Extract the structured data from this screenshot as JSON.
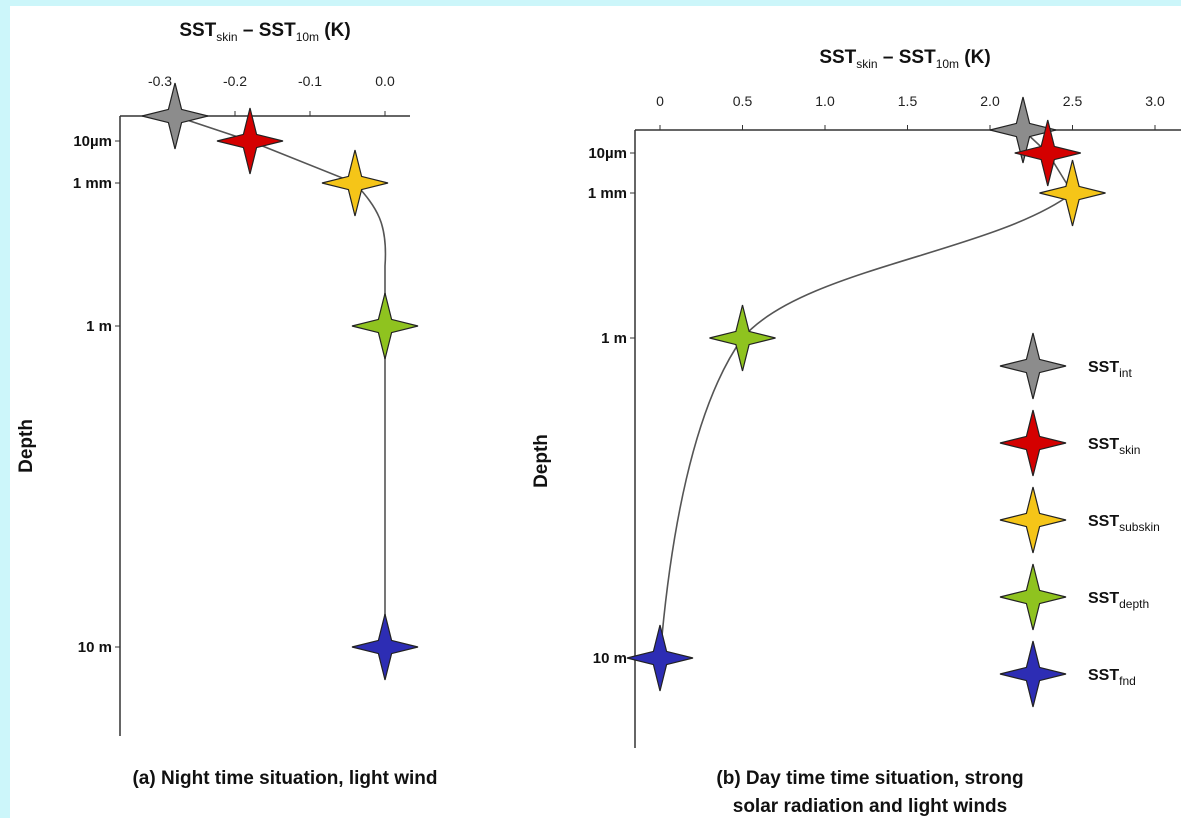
{
  "chart_data": [
    {
      "type": "line",
      "panel": "a",
      "caption": "(a) Night time situation, light wind",
      "xlabel": {
        "main": "SST",
        "sub1": "skin",
        "mid": " – SST",
        "sub2": "10m",
        "unit": " (K)"
      },
      "ylabel": "Depth",
      "xticks": [
        "-0.3",
        "-0.2",
        "-0.1",
        "0.0"
      ],
      "xlim": [
        -0.3,
        0.0
      ],
      "depth_ticks": [
        "10µm",
        "1 mm",
        "1 m",
        "10 m"
      ],
      "points": [
        {
          "name": "SST_int",
          "x": -0.28,
          "depth": "interface",
          "color": "#8c8c8c"
        },
        {
          "name": "SST_skin",
          "x": -0.18,
          "depth": "10µm",
          "color": "#d40000"
        },
        {
          "name": "SST_subskin",
          "x": -0.04,
          "depth": "1 mm",
          "color": "#f5c518"
        },
        {
          "name": "SST_depth",
          "x": 0.0,
          "depth": "1 m",
          "color": "#8fc31f"
        },
        {
          "name": "SST_fnd",
          "x": 0.0,
          "depth": "10 m",
          "color": "#2d2db4"
        }
      ]
    },
    {
      "type": "line",
      "panel": "b",
      "caption": [
        "(b) Day time time situation, strong",
        "solar radiation and light winds"
      ],
      "xlabel": {
        "main": "SST",
        "sub1": "skin",
        "mid": " – SST",
        "sub2": "10m",
        "unit": " (K)"
      },
      "ylabel": "Depth",
      "xticks": [
        "0",
        "0.5",
        "1.0",
        "1.5",
        "2.0",
        "2.5",
        "3.0"
      ],
      "xlim": [
        0,
        3.0
      ],
      "depth_ticks": [
        "10µm",
        "1 mm",
        "1 m",
        "10 m"
      ],
      "points": [
        {
          "name": "SST_int",
          "x": 2.2,
          "depth": "interface",
          "color": "#8c8c8c"
        },
        {
          "name": "SST_skin",
          "x": 2.35,
          "depth": "10µm",
          "color": "#d40000"
        },
        {
          "name": "SST_subskin",
          "x": 2.5,
          "depth": "1 mm",
          "color": "#f5c518"
        },
        {
          "name": "SST_depth",
          "x": 0.5,
          "depth": "1 m",
          "color": "#8fc31f"
        },
        {
          "name": "SST_fnd",
          "x": 0.0,
          "depth": "10 m",
          "color": "#2d2db4"
        }
      ]
    }
  ],
  "legend": [
    {
      "base": "SST",
      "sub": "int",
      "color": "#8c8c8c"
    },
    {
      "base": "SST",
      "sub": "skin",
      "color": "#d40000"
    },
    {
      "base": "SST",
      "sub": "subskin",
      "color": "#f5c518"
    },
    {
      "base": "SST",
      "sub": "depth",
      "color": "#8fc31f"
    },
    {
      "base": "SST",
      "sub": "fnd",
      "color": "#2d2db4"
    }
  ]
}
